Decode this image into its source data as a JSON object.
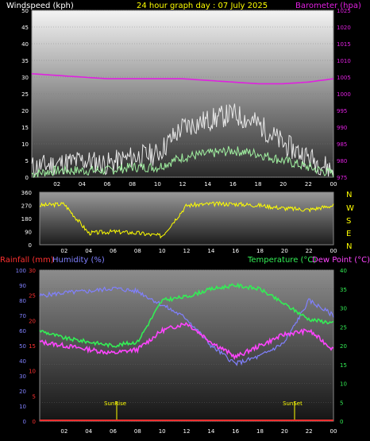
{
  "header": {
    "left": "Windspeed (kph)",
    "center": "24 hour graph day : 07 July 2025",
    "right": "Barometer (hpa)"
  },
  "colors": {
    "header_left": "#ffffff",
    "header_center": "#ffff00",
    "barometer": "#e020e0",
    "rainfall": "#ff3030",
    "humidity": "#8080ff",
    "temperature": "#33ee55",
    "dewpoint": "#ff44ff",
    "wind_dir": "#ffff00",
    "wind_speed": "#e8e8e8",
    "wind_avg": "#a0f0a0"
  },
  "x_ticks": [
    "02",
    "04",
    "06",
    "08",
    "10",
    "12",
    "14",
    "16",
    "18",
    "20",
    "22",
    "00"
  ],
  "bottom_labels": {
    "rainfall": "Rainfall (mm)",
    "humidity": "Humidity (%)",
    "temperature": "Temperature (°C)",
    "dewpoint": "Dew Point (°C)",
    "sunrise": "SunRise",
    "sunset": "SunSet"
  },
  "compass": [
    "N",
    "W",
    "S",
    "E",
    "N"
  ],
  "chart_data": [
    {
      "type": "line",
      "title": "Windspeed (kph) / Barometer (hpa)",
      "x": [
        0,
        2,
        4,
        6,
        8,
        10,
        12,
        14,
        16,
        18,
        20,
        22,
        24
      ],
      "y_left_ticks": [
        0,
        5,
        10,
        15,
        20,
        25,
        30,
        35,
        40,
        45,
        50
      ],
      "y_right_ticks": [
        975,
        980,
        985,
        990,
        995,
        1000,
        1005,
        1010,
        1015,
        1020,
        1025
      ],
      "ylim_left": [
        0,
        50
      ],
      "ylim_right": [
        975,
        1025
      ],
      "series": [
        {
          "name": "Windspeed gust",
          "values": [
            3,
            4,
            5,
            4,
            6,
            7,
            15,
            17,
            19,
            16,
            10,
            6,
            2
          ]
        },
        {
          "name": "Windspeed avg",
          "values": [
            1,
            2,
            2,
            2,
            3,
            3,
            6,
            7,
            8,
            7,
            5,
            3,
            1
          ]
        },
        {
          "name": "Barometer",
          "values": [
            1006,
            1005.5,
            1005,
            1004.5,
            1004.5,
            1004.5,
            1004.5,
            1004,
            1003.5,
            1003,
            1003,
            1003.5,
            1004.5
          ]
        }
      ]
    },
    {
      "type": "line",
      "title": "Wind direction",
      "x": [
        0,
        2,
        4,
        6,
        8,
        10,
        12,
        14,
        16,
        18,
        20,
        22,
        24
      ],
      "y_ticks": [
        0,
        90,
        180,
        270,
        360
      ],
      "ylim": [
        0,
        360
      ],
      "series": [
        {
          "name": "Direction",
          "values": [
            270,
            280,
            80,
            90,
            80,
            60,
            270,
            280,
            280,
            270,
            250,
            240,
            270
          ]
        }
      ]
    },
    {
      "type": "line",
      "title": "Rainfall / Humidity / Temperature / Dew Point",
      "x": [
        0,
        2,
        4,
        6,
        8,
        10,
        12,
        14,
        16,
        18,
        20,
        22,
        24
      ],
      "y_left_ticks": [
        0,
        10,
        20,
        30,
        40,
        50,
        60,
        70,
        80,
        90,
        100
      ],
      "y_rain_ticks": [
        0,
        5,
        10,
        15,
        20,
        25,
        30
      ],
      "y_right_ticks": [
        0,
        5,
        10,
        15,
        20,
        25,
        30,
        35,
        40
      ],
      "series": [
        {
          "name": "Humidity",
          "values": [
            83,
            85,
            86,
            88,
            86,
            77,
            68,
            50,
            38,
            43,
            52,
            80,
            70
          ]
        },
        {
          "name": "Temperature",
          "values": [
            24,
            22,
            21,
            20,
            21,
            32,
            33,
            35,
            36,
            35,
            31,
            27,
            26
          ]
        },
        {
          "name": "Dew Point",
          "values": [
            21,
            20,
            19,
            18,
            19,
            24,
            26,
            21,
            17,
            20,
            23,
            24,
            19
          ]
        },
        {
          "name": "Rainfall",
          "values": [
            0,
            0,
            0,
            0,
            0,
            0,
            0,
            0,
            0,
            0,
            0,
            0,
            0
          ]
        }
      ]
    }
  ]
}
